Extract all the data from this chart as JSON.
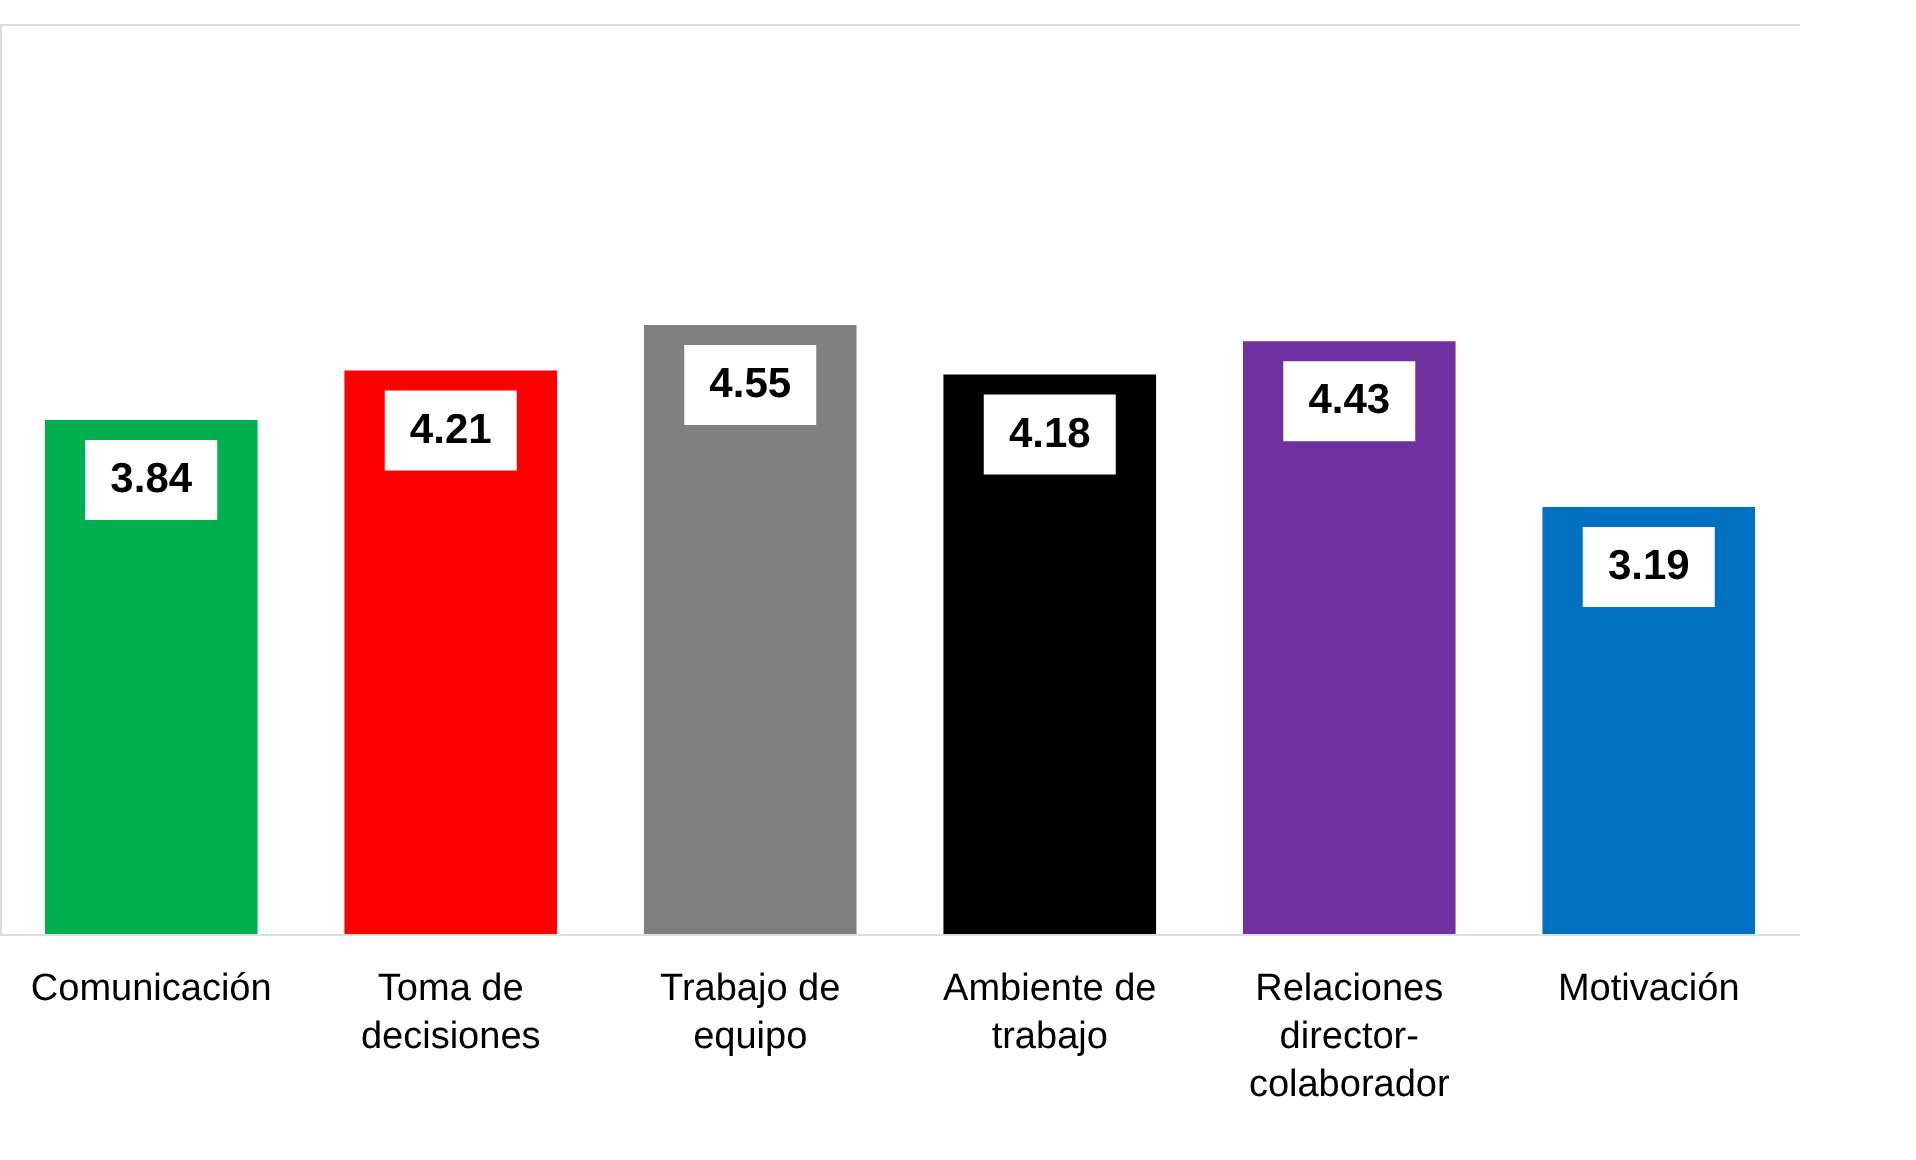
{
  "chart_data": {
    "type": "bar",
    "categories": [
      "Comunicación",
      "Toma de decisiones",
      "Trabajo de equipo",
      "Ambiente de trabajo",
      "Relaciones director-colaborador",
      "Motivación"
    ],
    "values": [
      3.84,
      4.21,
      4.55,
      4.18,
      4.43,
      3.19
    ],
    "colors": [
      "#00b050",
      "#ff0000",
      "#808080",
      "#000000",
      "#7030a0",
      "#0070c0"
    ],
    "ylim": [
      0,
      6.8
    ],
    "data_labels": true,
    "tick_labels": "x"
  }
}
